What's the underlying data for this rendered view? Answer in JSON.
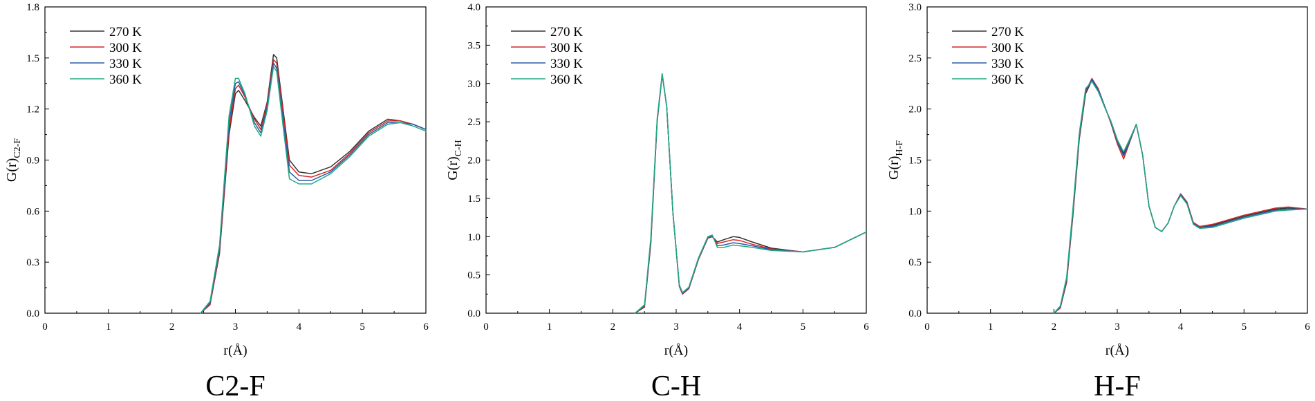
{
  "chart_data": [
    {
      "type": "line",
      "title": "C2-F",
      "xlabel": "r(Å)",
      "ylabel_main": "G(r)",
      "ylabel_sub": "C2-F",
      "xlim": [
        0,
        6
      ],
      "ylim": [
        0,
        1.8
      ],
      "xticks": [
        "0",
        "1",
        "2",
        "3",
        "4",
        "5",
        "6"
      ],
      "yticks": [
        "0.0",
        "0.3",
        "0.6",
        "0.9",
        "1.2",
        "1.5",
        "1.8"
      ],
      "legend_position": "top-left",
      "series": [
        {
          "name": "270 K",
          "color": "#333333",
          "x": [
            2.45,
            2.6,
            2.75,
            2.9,
            3.0,
            3.05,
            3.15,
            3.3,
            3.4,
            3.5,
            3.6,
            3.65,
            3.75,
            3.85,
            4.0,
            4.2,
            4.5,
            4.8,
            5.1,
            5.4,
            5.6,
            5.8,
            6.0
          ],
          "y": [
            0,
            0.05,
            0.35,
            1.05,
            1.29,
            1.31,
            1.25,
            1.15,
            1.1,
            1.24,
            1.52,
            1.5,
            1.2,
            0.9,
            0.83,
            0.82,
            0.86,
            0.95,
            1.07,
            1.14,
            1.13,
            1.11,
            1.08
          ]
        },
        {
          "name": "300 K",
          "color": "#d62728",
          "x": [
            2.45,
            2.6,
            2.75,
            2.9,
            3.0,
            3.05,
            3.15,
            3.3,
            3.4,
            3.5,
            3.6,
            3.65,
            3.75,
            3.85,
            4.0,
            4.2,
            4.5,
            4.8,
            5.1,
            5.4,
            5.6,
            5.8,
            6.0
          ],
          "y": [
            0,
            0.05,
            0.36,
            1.08,
            1.32,
            1.34,
            1.27,
            1.14,
            1.08,
            1.23,
            1.49,
            1.47,
            1.18,
            0.87,
            0.81,
            0.8,
            0.84,
            0.94,
            1.06,
            1.13,
            1.13,
            1.11,
            1.08
          ]
        },
        {
          "name": "330 K",
          "color": "#2a5caa",
          "x": [
            2.45,
            2.6,
            2.75,
            2.9,
            3.0,
            3.05,
            3.15,
            3.3,
            3.4,
            3.5,
            3.6,
            3.65,
            3.75,
            3.85,
            4.0,
            4.2,
            4.5,
            4.8,
            5.1,
            5.4,
            5.6,
            5.8,
            6.0
          ],
          "y": [
            0,
            0.06,
            0.38,
            1.12,
            1.35,
            1.36,
            1.28,
            1.12,
            1.06,
            1.21,
            1.47,
            1.44,
            1.14,
            0.83,
            0.78,
            0.78,
            0.83,
            0.93,
            1.05,
            1.12,
            1.12,
            1.11,
            1.08
          ]
        },
        {
          "name": "360 K",
          "color": "#22a884",
          "x": [
            2.45,
            2.6,
            2.75,
            2.9,
            3.0,
            3.05,
            3.15,
            3.3,
            3.4,
            3.5,
            3.6,
            3.65,
            3.75,
            3.85,
            4.0,
            4.2,
            4.5,
            4.8,
            5.1,
            5.4,
            5.6,
            5.8,
            6.0
          ],
          "y": [
            0,
            0.07,
            0.4,
            1.16,
            1.38,
            1.38,
            1.29,
            1.1,
            1.04,
            1.19,
            1.45,
            1.42,
            1.1,
            0.79,
            0.76,
            0.76,
            0.82,
            0.92,
            1.04,
            1.11,
            1.12,
            1.1,
            1.07
          ]
        }
      ]
    },
    {
      "type": "line",
      "title": "C-H",
      "xlabel": "r(Å)",
      "ylabel_main": "G(r)",
      "ylabel_sub": "C-H",
      "xlim": [
        0,
        6
      ],
      "ylim": [
        0,
        4.0
      ],
      "xticks": [
        "0",
        "1",
        "2",
        "3",
        "4",
        "5",
        "6"
      ],
      "yticks": [
        "0.0",
        "0.5",
        "1.0",
        "1.5",
        "2.0",
        "2.5",
        "3.0",
        "3.5",
        "4.0"
      ],
      "legend_position": "top-left",
      "series": [
        {
          "name": "270 K",
          "color": "#333333",
          "x": [
            2.35,
            2.5,
            2.6,
            2.7,
            2.78,
            2.85,
            2.95,
            3.05,
            3.1,
            3.2,
            3.35,
            3.5,
            3.57,
            3.65,
            3.75,
            3.9,
            4.0,
            4.2,
            4.5,
            5.0,
            5.5,
            6.0
          ],
          "y": [
            0,
            0.08,
            0.9,
            2.5,
            3.12,
            2.7,
            1.3,
            0.35,
            0.25,
            0.32,
            0.7,
            0.98,
            1.0,
            0.93,
            0.96,
            1.0,
            0.99,
            0.93,
            0.85,
            0.8,
            0.86,
            1.06
          ]
        },
        {
          "name": "300 K",
          "color": "#d62728",
          "x": [
            2.35,
            2.5,
            2.6,
            2.7,
            2.78,
            2.85,
            2.95,
            3.05,
            3.1,
            3.2,
            3.35,
            3.5,
            3.57,
            3.65,
            3.75,
            3.9,
            4.0,
            4.2,
            4.5,
            5.0,
            5.5,
            6.0
          ],
          "y": [
            0,
            0.09,
            0.92,
            2.51,
            3.12,
            2.7,
            1.3,
            0.35,
            0.25,
            0.32,
            0.7,
            0.98,
            1.0,
            0.91,
            0.93,
            0.96,
            0.95,
            0.9,
            0.84,
            0.8,
            0.86,
            1.06
          ]
        },
        {
          "name": "330 K",
          "color": "#2a5caa",
          "x": [
            2.35,
            2.5,
            2.6,
            2.7,
            2.78,
            2.85,
            2.95,
            3.05,
            3.1,
            3.2,
            3.35,
            3.5,
            3.57,
            3.65,
            3.75,
            3.9,
            4.0,
            4.2,
            4.5,
            5.0,
            5.5,
            6.0
          ],
          "y": [
            0,
            0.1,
            0.95,
            2.52,
            3.12,
            2.7,
            1.3,
            0.36,
            0.26,
            0.33,
            0.71,
            0.99,
            1.01,
            0.88,
            0.89,
            0.92,
            0.91,
            0.88,
            0.83,
            0.8,
            0.86,
            1.06
          ]
        },
        {
          "name": "360 K",
          "color": "#22a884",
          "x": [
            2.35,
            2.5,
            2.6,
            2.7,
            2.78,
            2.85,
            2.95,
            3.05,
            3.1,
            3.2,
            3.35,
            3.5,
            3.57,
            3.65,
            3.75,
            3.9,
            4.0,
            4.2,
            4.5,
            5.0,
            5.5,
            6.0
          ],
          "y": [
            0,
            0.11,
            0.98,
            2.54,
            3.13,
            2.7,
            1.3,
            0.37,
            0.27,
            0.34,
            0.72,
            1.0,
            1.02,
            0.86,
            0.86,
            0.89,
            0.88,
            0.86,
            0.82,
            0.8,
            0.86,
            1.06
          ]
        }
      ]
    },
    {
      "type": "line",
      "title": "H-F",
      "xlabel": "r(Å)",
      "ylabel_main": "G(r)",
      "ylabel_sub": "H-F",
      "xlim": [
        0,
        6
      ],
      "ylim": [
        0,
        3.0
      ],
      "xticks": [
        "0",
        "1",
        "2",
        "3",
        "4",
        "5",
        "6"
      ],
      "yticks": [
        "0.0",
        "0.5",
        "1.0",
        "1.5",
        "2.0",
        "2.5",
        "3.0"
      ],
      "legend_position": "top-left",
      "series": [
        {
          "name": "270 K",
          "color": "#333333",
          "x": [
            2.0,
            2.1,
            2.2,
            2.3,
            2.4,
            2.5,
            2.6,
            2.7,
            2.8,
            2.9,
            3.0,
            3.1,
            3.2,
            3.3,
            3.4,
            3.5,
            3.6,
            3.7,
            3.8,
            3.9,
            4.0,
            4.1,
            4.2,
            4.3,
            4.5,
            5.0,
            5.5,
            5.7,
            6.0
          ],
          "y": [
            0,
            0.05,
            0.3,
            0.95,
            1.7,
            2.15,
            2.28,
            2.18,
            2.02,
            1.88,
            1.7,
            1.56,
            1.7,
            1.85,
            1.55,
            1.05,
            0.84,
            0.8,
            0.88,
            1.05,
            1.16,
            1.08,
            0.88,
            0.84,
            0.86,
            0.95,
            1.02,
            1.03,
            1.02
          ]
        },
        {
          "name": "300 K",
          "color": "#d62728",
          "x": [
            2.0,
            2.1,
            2.2,
            2.3,
            2.4,
            2.5,
            2.6,
            2.7,
            2.8,
            2.9,
            3.0,
            3.1,
            3.2,
            3.3,
            3.4,
            3.5,
            3.6,
            3.7,
            3.8,
            3.9,
            4.0,
            4.1,
            4.2,
            4.3,
            4.5,
            5.0,
            5.5,
            5.7,
            6.0
          ],
          "y": [
            0,
            0.05,
            0.31,
            0.97,
            1.72,
            2.17,
            2.3,
            2.2,
            2.03,
            1.86,
            1.66,
            1.51,
            1.68,
            1.85,
            1.55,
            1.05,
            0.84,
            0.8,
            0.88,
            1.05,
            1.17,
            1.09,
            0.89,
            0.85,
            0.87,
            0.96,
            1.03,
            1.04,
            1.02
          ]
        },
        {
          "name": "330 K",
          "color": "#2a5caa",
          "x": [
            2.0,
            2.1,
            2.2,
            2.3,
            2.4,
            2.5,
            2.6,
            2.7,
            2.8,
            2.9,
            3.0,
            3.1,
            3.2,
            3.3,
            3.4,
            3.5,
            3.6,
            3.7,
            3.8,
            3.9,
            4.0,
            4.1,
            4.2,
            4.3,
            4.5,
            5.0,
            5.5,
            5.7,
            6.0
          ],
          "y": [
            0,
            0.06,
            0.33,
            0.99,
            1.74,
            2.18,
            2.29,
            2.19,
            2.03,
            1.87,
            1.68,
            1.54,
            1.69,
            1.85,
            1.55,
            1.05,
            0.84,
            0.8,
            0.88,
            1.05,
            1.16,
            1.08,
            0.88,
            0.84,
            0.85,
            0.94,
            1.01,
            1.02,
            1.02
          ]
        },
        {
          "name": "360 K",
          "color": "#22a884",
          "x": [
            2.0,
            2.1,
            2.2,
            2.3,
            2.4,
            2.5,
            2.6,
            2.7,
            2.8,
            2.9,
            3.0,
            3.1,
            3.2,
            3.3,
            3.4,
            3.5,
            3.6,
            3.7,
            3.8,
            3.9,
            4.0,
            4.1,
            4.2,
            4.3,
            4.5,
            5.0,
            5.5,
            5.7,
            6.0
          ],
          "y": [
            0,
            0.07,
            0.35,
            1.02,
            1.76,
            2.2,
            2.27,
            2.17,
            2.02,
            1.88,
            1.7,
            1.58,
            1.71,
            1.85,
            1.55,
            1.05,
            0.84,
            0.8,
            0.88,
            1.05,
            1.15,
            1.07,
            0.87,
            0.83,
            0.84,
            0.93,
            1.0,
            1.01,
            1.02
          ]
        }
      ]
    }
  ]
}
